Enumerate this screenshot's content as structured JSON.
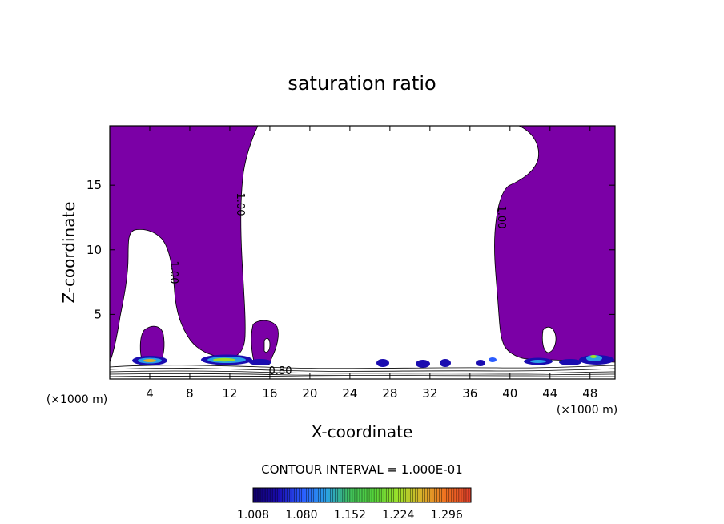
{
  "chart_data": {
    "type": "heatmap",
    "title": "saturation ratio",
    "xlabel": "X-coordinate",
    "ylabel": "Z-coordinate",
    "x_unit": "(×1000 m)",
    "y_unit": "(×1000 m)",
    "xlim": [
      0,
      50.5
    ],
    "ylim": [
      0,
      19.6
    ],
    "x_ticks": [
      4,
      8,
      12,
      16,
      20,
      24,
      28,
      32,
      36,
      40,
      44,
      48
    ],
    "y_ticks": [
      5,
      10,
      15
    ],
    "contour_interval_text": "CONTOUR INTERVAL = 1.000E-01",
    "contour_labels": [
      {
        "text": "1.00",
        "x": 13.0,
        "y": 14.5,
        "angle": 90
      },
      {
        "text": "1.00",
        "x": 6.1,
        "y": 8.5,
        "angle": 90
      },
      {
        "text": "1.00",
        "x": 38.7,
        "y": 12.5,
        "angle": 90
      },
      {
        "text": "0.80",
        "x": 17.1,
        "y": 0.7,
        "angle": 0
      }
    ],
    "colorbar": {
      "min": 1.008,
      "max": 1.332,
      "tick_labels": [
        "1.008",
        "1.080",
        "1.152",
        "1.224",
        "1.296"
      ],
      "colors": [
        "#10006a",
        "#1a0cb0",
        "#2a5cff",
        "#2aa0e6",
        "#3fbf5a",
        "#55d23a",
        "#9ce02a",
        "#d9b02a",
        "#f07020",
        "#e0402a"
      ]
    },
    "regions": [
      {
        "label": "left supersaturated column",
        "x_range": [
          0,
          14
        ],
        "z_range": [
          1,
          19.6
        ],
        "value": "≥1.0"
      },
      {
        "label": "right supersaturated column",
        "x_range": [
          38,
          50.5
        ],
        "z_range": [
          1,
          19.6
        ],
        "value": "≥1.0"
      },
      {
        "label": "central subsaturated region",
        "x_range": [
          14,
          38
        ],
        "z_range": [
          1,
          19.6
        ],
        "value": "<1.0"
      },
      {
        "label": "near-surface maxima",
        "x_range": [
          3,
          13
        ],
        "z_range": [
          1.2,
          2
        ],
        "value": "≈1.15–1.30"
      }
    ]
  }
}
